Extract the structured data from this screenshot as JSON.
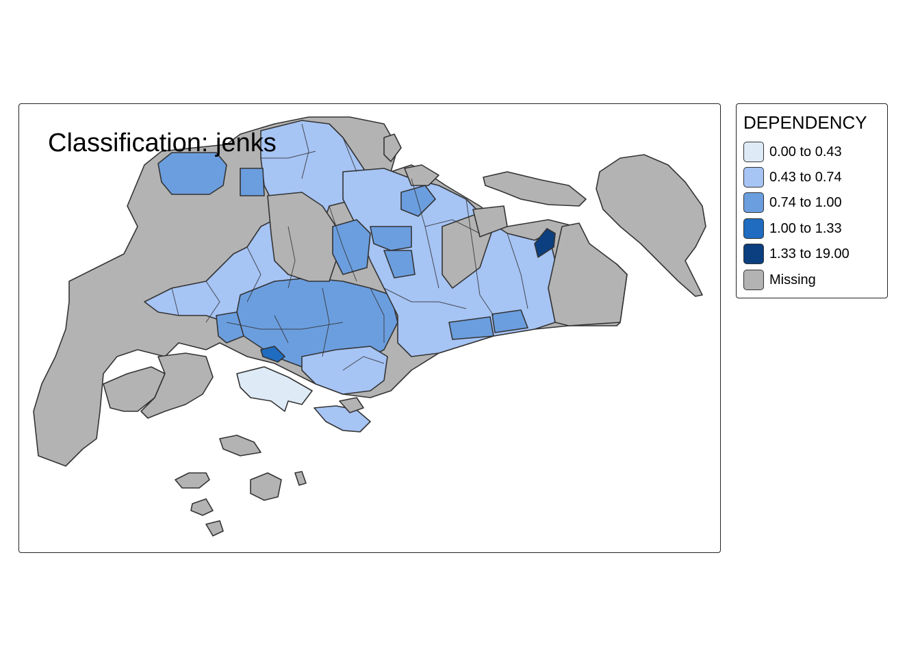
{
  "map": {
    "title": "Classification: jenks",
    "colors": {
      "c0": "#deebf7",
      "c1": "#a6c4f4",
      "c2": "#6b9edf",
      "c3": "#1f6cc0",
      "c4": "#0b3f7f",
      "missing": "#b3b3b3",
      "border": "#333333"
    }
  },
  "legend": {
    "title": "DEPENDENCY",
    "items": [
      {
        "label": "0.00 to 0.43",
        "color": "#deebf7"
      },
      {
        "label": "0.43 to 0.74",
        "color": "#a6c4f4"
      },
      {
        "label": "0.74 to 1.00",
        "color": "#6b9edf"
      },
      {
        "label": "1.00 to 1.33",
        "color": "#1f6cc0"
      },
      {
        "label": "1.33 to 19.00",
        "color": "#0b3f7f"
      },
      {
        "label": "Missing",
        "color": "#b3b3b3"
      }
    ]
  }
}
